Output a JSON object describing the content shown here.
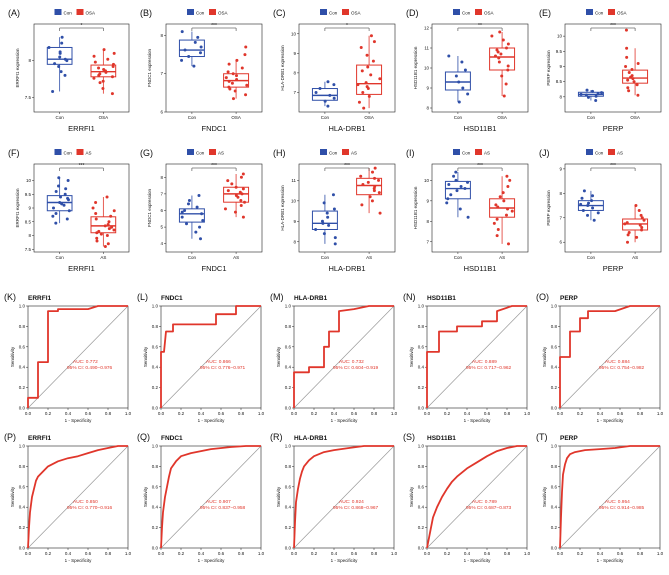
{
  "colors": {
    "con": "#2f4fa8",
    "case": "#e0362b",
    "roc": "#e0362b",
    "diag": "#999999",
    "axis": "#222222"
  },
  "labels": {
    "sens": "Sensitivity",
    "spec": "1 - Specificity",
    "con": "Con",
    "sig3": "***",
    "sig2": "**",
    "sig1": "*"
  },
  "chart_data": {
    "boxplots": [
      {
        "letter": "(A)",
        "gene": "ERRFI1",
        "ylabel": "ERRFI1 expression",
        "case": "OSA",
        "sig": "*",
        "ylim": [
          7.3,
          8.5
        ],
        "ticks": [
          7.5,
          8.0
        ],
        "con": {
          "q1": 7.95,
          "med": 8.02,
          "q3": 8.18,
          "wlo": 7.58,
          "whi": 8.32,
          "pts": [
            7.58,
            7.8,
            7.85,
            7.92,
            7.96,
            8.0,
            8.02,
            8.05,
            8.1,
            8.12,
            8.18,
            8.24,
            8.32
          ]
        },
        "case_stats": {
          "q1": 7.78,
          "med": 7.85,
          "q3": 7.94,
          "wlo": 7.55,
          "whi": 8.15,
          "pts": [
            7.55,
            7.62,
            7.7,
            7.72,
            7.76,
            7.78,
            7.8,
            7.82,
            7.84,
            7.86,
            7.88,
            7.9,
            7.92,
            7.95,
            7.98,
            8.02,
            8.06,
            8.1,
            8.15
          ]
        }
      },
      {
        "letter": "(B)",
        "gene": "FNDC1",
        "ylabel": "FNDC1 expression",
        "case": "OSA",
        "sig": "***",
        "ylim": [
          6.0,
          8.3
        ],
        "ticks": [
          6,
          7,
          8
        ],
        "con": {
          "q1": 7.45,
          "med": 7.62,
          "q3": 7.88,
          "wlo": 7.2,
          "whi": 8.1,
          "pts": [
            7.2,
            7.35,
            7.45,
            7.55,
            7.62,
            7.7,
            7.82,
            7.95,
            8.1
          ]
        },
        "case_stats": {
          "q1": 6.65,
          "med": 6.82,
          "q3": 7.0,
          "wlo": 6.35,
          "whi": 7.35,
          "pts": [
            6.35,
            6.45,
            6.55,
            6.6,
            6.65,
            6.7,
            6.75,
            6.8,
            6.85,
            6.9,
            6.95,
            7.0,
            7.05,
            7.15,
            7.25,
            7.35,
            7.5,
            7.7
          ]
        }
      },
      {
        "letter": "(C)",
        "gene": "HLA-DRB1",
        "ylabel": "HLA-DRB1 expression",
        "case": "OSA",
        "sig": "*",
        "ylim": [
          6.0,
          10.5
        ],
        "ticks": [
          7,
          8,
          9,
          10
        ],
        "con": {
          "q1": 6.6,
          "med": 6.85,
          "q3": 7.2,
          "wlo": 6.3,
          "whi": 7.55,
          "pts": [
            6.3,
            6.55,
            6.7,
            6.85,
            7.0,
            7.2,
            7.4,
            7.55
          ]
        },
        "case_stats": {
          "q1": 6.9,
          "med": 7.45,
          "q3": 8.4,
          "wlo": 6.2,
          "whi": 9.9,
          "pts": [
            6.2,
            6.5,
            6.8,
            7.0,
            7.2,
            7.3,
            7.4,
            7.5,
            7.7,
            7.9,
            8.1,
            8.3,
            8.6,
            8.9,
            9.3,
            9.6,
            9.9
          ]
        }
      },
      {
        "letter": "(D)",
        "gene": "HSD11B1",
        "ylabel": "HSD11B1 expression",
        "case": "OSA",
        "sig": "**",
        "ylim": [
          7.8,
          12.2
        ],
        "ticks": [
          8,
          9,
          10,
          11,
          12
        ],
        "con": {
          "q1": 8.9,
          "med": 9.3,
          "q3": 9.8,
          "wlo": 8.3,
          "whi": 10.6,
          "pts": [
            8.3,
            8.7,
            9.0,
            9.3,
            9.6,
            9.9,
            10.3,
            10.6
          ]
        },
        "case_stats": {
          "q1": 9.9,
          "med": 10.55,
          "q3": 11.0,
          "wlo": 8.6,
          "whi": 11.8,
          "pts": [
            8.6,
            9.2,
            9.6,
            9.9,
            10.1,
            10.3,
            10.5,
            10.6,
            10.7,
            10.8,
            10.9,
            11.0,
            11.2,
            11.4,
            11.6,
            11.8
          ]
        }
      },
      {
        "letter": "(E)",
        "gene": "PERP",
        "ylabel": "PERP expression",
        "case": "OSA",
        "sig": "***",
        "ylim": [
          7.5,
          10.4
        ],
        "ticks": [
          8.0,
          8.5,
          9.0,
          9.5,
          10.0
        ],
        "con": {
          "q1": 8.02,
          "med": 8.08,
          "q3": 8.15,
          "wlo": 7.88,
          "whi": 8.22,
          "pts": [
            7.88,
            7.98,
            8.02,
            8.06,
            8.08,
            8.1,
            8.14,
            8.18,
            8.22
          ]
        },
        "case_stats": {
          "q1": 8.45,
          "med": 8.62,
          "q3": 8.88,
          "wlo": 8.05,
          "whi": 9.6,
          "pts": [
            8.05,
            8.2,
            8.3,
            8.4,
            8.5,
            8.55,
            8.6,
            8.65,
            8.7,
            8.8,
            8.9,
            9.0,
            9.1,
            9.3,
            9.6,
            10.2
          ]
        }
      },
      {
        "letter": "(F)",
        "gene": "ERRFI1",
        "ylabel": "ERRFI1 expression",
        "case": "AS",
        "sig": "***",
        "ylim": [
          7.4,
          10.6
        ],
        "ticks": [
          7.5,
          8.0,
          8.5,
          9.0,
          9.5,
          10.0
        ],
        "con": {
          "q1": 8.9,
          "med": 9.2,
          "q3": 9.45,
          "wlo": 8.45,
          "whi": 10.1,
          "pts": [
            8.45,
            8.6,
            8.7,
            8.8,
            8.9,
            9.0,
            9.1,
            9.15,
            9.2,
            9.3,
            9.35,
            9.4,
            9.5,
            9.6,
            9.7,
            9.8,
            10.0,
            10.1
          ]
        },
        "case_stats": {
          "q1": 8.1,
          "med": 8.35,
          "q3": 8.68,
          "wlo": 7.6,
          "whi": 9.4,
          "pts": [
            7.6,
            7.7,
            7.8,
            7.9,
            8.0,
            8.05,
            8.1,
            8.15,
            8.2,
            8.25,
            8.3,
            8.35,
            8.4,
            8.5,
            8.6,
            8.7,
            8.8,
            8.9,
            9.0,
            9.2,
            9.4
          ]
        }
      },
      {
        "letter": "(G)",
        "gene": "FNDC1",
        "ylabel": "FNDC1 expression",
        "case": "AS",
        "sig": "***",
        "ylim": [
          3.5,
          8.8
        ],
        "ticks": [
          4,
          5,
          6,
          7,
          8
        ],
        "con": {
          "q1": 5.3,
          "med": 5.8,
          "q3": 6.1,
          "wlo": 4.3,
          "whi": 6.9,
          "pts": [
            4.3,
            4.7,
            5.0,
            5.2,
            5.4,
            5.6,
            5.8,
            5.9,
            6.0,
            6.2,
            6.4,
            6.6,
            6.9
          ]
        },
        "case_stats": {
          "q1": 6.5,
          "med": 7.0,
          "q3": 7.4,
          "wlo": 5.6,
          "whi": 8.2,
          "pts": [
            5.6,
            5.9,
            6.1,
            6.3,
            6.5,
            6.6,
            6.8,
            6.9,
            7.0,
            7.1,
            7.2,
            7.3,
            7.4,
            7.6,
            7.8,
            8.0,
            8.2
          ]
        }
      },
      {
        "letter": "(H)",
        "gene": "HLA-DRB1",
        "ylabel": "HLA-DRB1 expression",
        "case": "AS",
        "sig": "***",
        "ylim": [
          7.5,
          11.8
        ],
        "ticks": [
          8,
          9,
          10,
          11
        ],
        "con": {
          "q1": 8.6,
          "med": 8.9,
          "q3": 9.5,
          "wlo": 7.9,
          "whi": 10.3,
          "pts": [
            7.9,
            8.2,
            8.4,
            8.6,
            8.8,
            8.9,
            9.0,
            9.2,
            9.4,
            9.6,
            9.9,
            10.3
          ]
        },
        "case_stats": {
          "q1": 10.3,
          "med": 10.75,
          "q3": 11.1,
          "wlo": 9.4,
          "whi": 11.6,
          "pts": [
            9.4,
            9.8,
            10.0,
            10.2,
            10.4,
            10.5,
            10.6,
            10.7,
            10.8,
            10.9,
            11.0,
            11.1,
            11.2,
            11.4,
            11.6
          ]
        }
      },
      {
        "letter": "(I)",
        "gene": "HSD11B1",
        "ylabel": "HSD11B1 expression",
        "case": "AS",
        "sig": "***",
        "ylim": [
          6.5,
          10.8
        ],
        "ticks": [
          7,
          8,
          9,
          10
        ],
        "con": {
          "q1": 9.1,
          "med": 9.6,
          "q3": 9.95,
          "wlo": 8.2,
          "whi": 10.4,
          "pts": [
            8.2,
            8.6,
            8.9,
            9.1,
            9.3,
            9.5,
            9.6,
            9.7,
            9.8,
            9.9,
            10.0,
            10.2,
            10.4
          ]
        },
        "case_stats": {
          "q1": 8.2,
          "med": 8.65,
          "q3": 9.1,
          "wlo": 6.9,
          "whi": 10.2,
          "pts": [
            6.9,
            7.3,
            7.6,
            7.9,
            8.1,
            8.3,
            8.5,
            8.6,
            8.7,
            8.8,
            9.0,
            9.2,
            9.4,
            9.7,
            10.0,
            10.2
          ]
        }
      },
      {
        "letter": "(J)",
        "gene": "PERP",
        "ylabel": "PERP expression",
        "case": "AS",
        "sig": "***",
        "ylim": [
          5.6,
          9.2
        ],
        "ticks": [
          6,
          7,
          8,
          9
        ],
        "con": {
          "q1": 7.3,
          "med": 7.5,
          "q3": 7.7,
          "wlo": 6.9,
          "whi": 8.1,
          "pts": [
            6.9,
            7.1,
            7.2,
            7.3,
            7.4,
            7.5,
            7.55,
            7.6,
            7.7,
            7.8,
            7.9,
            8.1
          ]
        },
        "case_stats": {
          "q1": 6.5,
          "med": 6.75,
          "q3": 6.95,
          "wlo": 6.0,
          "whi": 7.5,
          "pts": [
            6.0,
            6.2,
            6.3,
            6.4,
            6.5,
            6.6,
            6.7,
            6.75,
            6.8,
            6.9,
            7.0,
            7.1,
            7.3,
            7.5
          ]
        }
      }
    ],
    "rocs": [
      {
        "letter": "(K)",
        "title": "ERRFI1",
        "auc": "AUC: 0.772",
        "ci": "95% CI: 0.490−0.976",
        "fpr": [
          0,
          0,
          0.1,
          0.1,
          0.2,
          0.2,
          0.3,
          0.3,
          0.6,
          0.7,
          1
        ],
        "tpr": [
          0,
          0.1,
          0.1,
          0.45,
          0.45,
          0.95,
          0.95,
          0.97,
          0.97,
          1,
          1
        ]
      },
      {
        "letter": "(L)",
        "title": "FNDC1",
        "auc": "AUC: 0.866",
        "ci": "95% CI: 0.776−0.971",
        "fpr": [
          0,
          0,
          0.03,
          0.05,
          0.12,
          0.12,
          0.55,
          0.55,
          0.75,
          0.75,
          1
        ],
        "tpr": [
          0,
          0.55,
          0.55,
          0.75,
          0.75,
          0.82,
          0.82,
          0.92,
          0.92,
          1,
          1
        ]
      },
      {
        "letter": "(M)",
        "title": "HLA-DRB1",
        "auc": "AUC: 0.732",
        "ci": "95% CI: 0.604−0.919",
        "fpr": [
          0,
          0,
          0.15,
          0.15,
          0.3,
          0.3,
          0.35,
          0.35,
          0.45,
          0.45,
          0.6,
          0.75,
          1
        ],
        "tpr": [
          0,
          0.35,
          0.35,
          0.4,
          0.4,
          0.6,
          0.6,
          0.75,
          0.75,
          0.95,
          0.97,
          1,
          1
        ]
      },
      {
        "letter": "(N)",
        "title": "HSD11B1",
        "auc": "AUC: 0.889",
        "ci": "95% CI: 0.717−0.962",
        "fpr": [
          0,
          0,
          0.12,
          0.12,
          0.3,
          0.3,
          0.55,
          0.55,
          0.7,
          0.7,
          0.85,
          1
        ],
        "tpr": [
          0,
          0.55,
          0.55,
          0.75,
          0.75,
          0.8,
          0.8,
          0.85,
          0.85,
          0.95,
          1,
          1
        ]
      },
      {
        "letter": "(O)",
        "title": "PERP",
        "auc": "AUC: 0.884",
        "ci": "95% CI: 0.754−0.982",
        "fpr": [
          0,
          0,
          0.1,
          0.1,
          0.2,
          0.2,
          0.28,
          0.28,
          0.55,
          0.7,
          1
        ],
        "tpr": [
          0,
          0.5,
          0.5,
          0.75,
          0.75,
          0.88,
          0.88,
          0.95,
          0.95,
          1,
          1
        ]
      },
      {
        "letter": "(P)",
        "title": "ERRFI1",
        "auc": "AUC: 0.850",
        "ci": "95% CI: 0.770−0.916",
        "fpr": [
          0,
          0.01,
          0.02,
          0.04,
          0.06,
          0.08,
          0.1,
          0.15,
          0.2,
          0.3,
          0.4,
          0.5,
          0.6,
          0.7,
          0.8,
          0.9,
          1
        ],
        "tpr": [
          0,
          0.2,
          0.35,
          0.5,
          0.58,
          0.66,
          0.7,
          0.75,
          0.8,
          0.85,
          0.88,
          0.9,
          0.93,
          0.96,
          0.98,
          1,
          1
        ]
      },
      {
        "letter": "(Q)",
        "title": "FNDC1",
        "auc": "AUC: 0.907",
        "ci": "95% CI: 0.837−0.958",
        "fpr": [
          0,
          0.01,
          0.02,
          0.04,
          0.06,
          0.08,
          0.1,
          0.15,
          0.2,
          0.3,
          0.4,
          0.5,
          0.7,
          0.85,
          1
        ],
        "tpr": [
          0,
          0.2,
          0.35,
          0.5,
          0.6,
          0.7,
          0.78,
          0.85,
          0.9,
          0.93,
          0.95,
          0.97,
          0.99,
          1,
          1
        ]
      },
      {
        "letter": "(R)",
        "title": "HLA-DRB1",
        "auc": "AUC: 0.924",
        "ci": "95% CI: 0.868−0.967",
        "fpr": [
          0,
          0.01,
          0.02,
          0.04,
          0.06,
          0.08,
          0.1,
          0.15,
          0.2,
          0.3,
          0.4,
          0.55,
          0.7,
          1
        ],
        "tpr": [
          0,
          0.25,
          0.45,
          0.58,
          0.68,
          0.75,
          0.8,
          0.86,
          0.9,
          0.94,
          0.96,
          0.98,
          1,
          1
        ]
      },
      {
        "letter": "(S)",
        "title": "HSD11B1",
        "auc": "AUC: 0.789",
        "ci": "95% CI: 0.687−0.873",
        "fpr": [
          0,
          0.02,
          0.04,
          0.06,
          0.1,
          0.15,
          0.2,
          0.25,
          0.3,
          0.4,
          0.5,
          0.6,
          0.7,
          0.8,
          0.9,
          1
        ],
        "tpr": [
          0,
          0.1,
          0.2,
          0.3,
          0.4,
          0.5,
          0.58,
          0.65,
          0.7,
          0.78,
          0.84,
          0.9,
          0.95,
          0.98,
          1,
          1
        ]
      },
      {
        "letter": "(T)",
        "title": "PERP",
        "auc": "AUC: 0.954",
        "ci": "95% CI: 0.914−0.985",
        "fpr": [
          0,
          0.01,
          0.02,
          0.03,
          0.05,
          0.07,
          0.1,
          0.15,
          0.25,
          0.4,
          0.55,
          0.7,
          1
        ],
        "tpr": [
          0,
          0.3,
          0.55,
          0.72,
          0.82,
          0.88,
          0.92,
          0.94,
          0.96,
          0.97,
          0.98,
          1,
          1
        ]
      }
    ]
  }
}
